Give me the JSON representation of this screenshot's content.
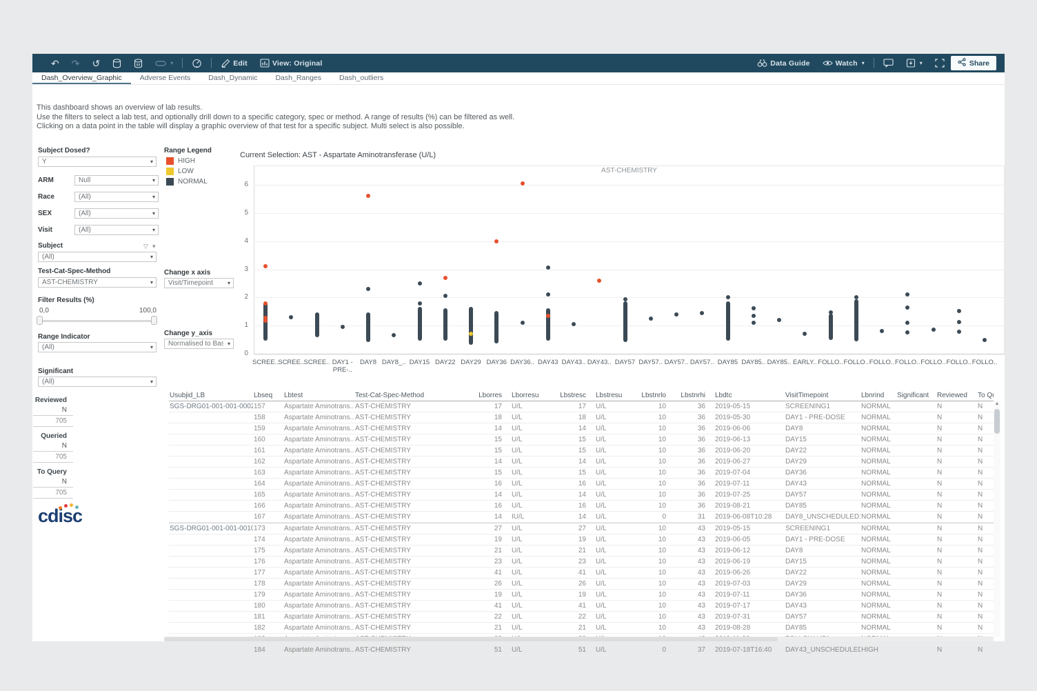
{
  "toolbar": {
    "edit": "Edit",
    "view": "View: Original",
    "data_guide": "Data Guide",
    "watch": "Watch",
    "share": "Share"
  },
  "tabs": [
    "Dash_Overview_Graphic",
    "Adverse Events",
    "Dash_Dynamic",
    "Dash_Ranges",
    "Dash_outliers"
  ],
  "active_tab": "Dash_Overview_Graphic",
  "description": {
    "line1": "This dashboard shows an overview of lab results.",
    "line2": "Use the filters to select a lab test, and optionally drill down to a specific category, spec or method. A range of results (%) can be filtered as well.",
    "line3": "Clicking on a data point in the table will display a graphic overview of that test for a specific subject. Multi select is also possible."
  },
  "filters": {
    "subject_dosed": {
      "label": "Subject Dosed?",
      "value": "Y"
    },
    "arm": {
      "label": "ARM",
      "value": "Null"
    },
    "race": {
      "label": "Race",
      "value": "(All)"
    },
    "sex": {
      "label": "SEX",
      "value": "(All)"
    },
    "visit": {
      "label": "Visit",
      "value": "(All)"
    },
    "subject": {
      "label": "Subject",
      "value": "(All)"
    },
    "test_cat": {
      "label": "Test-Cat-Spec-Method",
      "value": "AST-CHEMISTRY"
    },
    "filter_results": {
      "label": "Filter Results (%)",
      "min": "0,0",
      "max": "100,0"
    },
    "range_indicator": {
      "label": "Range Indicator",
      "value": "(All)"
    },
    "significant": {
      "label": "Significant",
      "value": "(All)"
    }
  },
  "axis_controls": {
    "x": {
      "label": "Change x axis",
      "value": "Visit/Timepoint"
    },
    "y": {
      "label": "Change y_axis",
      "value": "Normalised to Basel..."
    }
  },
  "legend": {
    "title": "Range Legend",
    "items": [
      {
        "label": "HIGH",
        "color": "#e8502c"
      },
      {
        "label": "LOW",
        "color": "#eec82d"
      },
      {
        "label": "NORMAL",
        "color": "#3b4a55"
      }
    ]
  },
  "counts": [
    {
      "label": "Reviewed",
      "header": "N",
      "value": "705"
    },
    {
      "label": "Queried",
      "header": "N",
      "value": "705"
    },
    {
      "label": "To Query",
      "header": "N",
      "value": "705"
    }
  ],
  "logo_text": "cdisc",
  "chart_title": "Current Selection: AST - Aspartate Aminotransferase (U/L)",
  "chart_data": {
    "type": "scatter",
    "pane_title": "AST-CHEMISTRY",
    "ylim": [
      0,
      6.5
    ],
    "yticks": [
      0,
      1,
      2,
      3,
      4,
      5,
      6
    ],
    "grid": true,
    "point_colors": {
      "high": "#e8502c",
      "low": "#eec82d",
      "normal": "#3b4a55"
    },
    "columns": [
      {
        "label": "SCREE..",
        "cluster": [
          0.55,
          1.75
        ],
        "points": [
          {
            "y": 3.1,
            "c": "high"
          },
          {
            "y": 1.8,
            "c": "high"
          },
          {
            "y": 1.28,
            "c": "high"
          },
          {
            "y": 1.18,
            "c": "high"
          }
        ]
      },
      {
        "label": "SCREE..",
        "cluster": null,
        "points": [
          {
            "y": 1.3
          }
        ]
      },
      {
        "label": "SCREE..",
        "cluster": [
          0.65,
          1.4
        ],
        "points": []
      },
      {
        "label": "DAY1 - PRE-..",
        "cluster": null,
        "points": [
          {
            "y": 0.95
          }
        ]
      },
      {
        "label": "DAY8",
        "cluster": [
          0.5,
          1.4
        ],
        "points": [
          {
            "y": 5.6,
            "c": "high"
          },
          {
            "y": 2.3
          }
        ]
      },
      {
        "label": "DAY8_..",
        "cluster": null,
        "points": [
          {
            "y": 0.65
          }
        ]
      },
      {
        "label": "DAY15",
        "cluster": [
          0.55,
          1.6
        ],
        "points": [
          {
            "y": 2.5
          },
          {
            "y": 1.8
          }
        ]
      },
      {
        "label": "DAY22",
        "cluster": [
          0.55,
          1.55
        ],
        "points": [
          {
            "y": 2.7,
            "c": "high"
          },
          {
            "y": 2.05
          }
        ]
      },
      {
        "label": "DAY29",
        "cluster": [
          0.4,
          1.6
        ],
        "points": [
          {
            "y": 0.7,
            "c": "low"
          }
        ]
      },
      {
        "label": "DAY36",
        "cluster": [
          0.45,
          1.45
        ],
        "points": [
          {
            "y": 4.0,
            "c": "high"
          }
        ]
      },
      {
        "label": "DAY36..",
        "cluster": null,
        "points": [
          {
            "y": 6.05,
            "c": "high"
          },
          {
            "y": 1.1
          }
        ]
      },
      {
        "label": "DAY43",
        "cluster": [
          0.55,
          1.55
        ],
        "points": [
          {
            "y": 3.05
          },
          {
            "y": 2.1
          },
          {
            "y": 1.35,
            "c": "high"
          }
        ]
      },
      {
        "label": "DAY43..",
        "cluster": null,
        "points": [
          {
            "y": 1.05
          }
        ]
      },
      {
        "label": "DAY43..",
        "cluster": null,
        "points": [
          {
            "y": 2.6,
            "c": "high"
          }
        ]
      },
      {
        "label": "DAY57",
        "cluster": [
          0.5,
          1.8
        ],
        "points": [
          {
            "y": 1.93
          }
        ]
      },
      {
        "label": "DAY57..",
        "cluster": null,
        "points": [
          {
            "y": 1.25
          }
        ]
      },
      {
        "label": "DAY57..",
        "cluster": null,
        "points": [
          {
            "y": 1.4
          }
        ]
      },
      {
        "label": "DAY57..",
        "cluster": null,
        "points": [
          {
            "y": 1.45
          }
        ]
      },
      {
        "label": "DAY85",
        "cluster": [
          0.55,
          1.8
        ],
        "points": [
          {
            "y": 2.0
          }
        ]
      },
      {
        "label": "DAY85..",
        "cluster": null,
        "points": [
          {
            "y": 1.62
          },
          {
            "y": 1.35
          },
          {
            "y": 1.1
          }
        ]
      },
      {
        "label": "DAY85..",
        "cluster": null,
        "points": [
          {
            "y": 1.2
          }
        ]
      },
      {
        "label": "EARLY..",
        "cluster": null,
        "points": [
          {
            "y": 0.7
          }
        ]
      },
      {
        "label": "FOLLO..",
        "cluster": [
          0.56,
          1.35
        ],
        "points": [
          {
            "y": 1.47
          }
        ]
      },
      {
        "label": "FOLLO..",
        "cluster": [
          0.51,
          1.86
        ],
        "points": [
          {
            "y": 2.0
          }
        ]
      },
      {
        "label": "FOLLO..",
        "cluster": null,
        "points": [
          {
            "y": 0.8
          }
        ]
      },
      {
        "label": "FOLLO..",
        "cluster": null,
        "points": [
          {
            "y": 2.1
          },
          {
            "y": 1.63
          },
          {
            "y": 1.1
          },
          {
            "y": 0.77
          }
        ]
      },
      {
        "label": "FOLLO..",
        "cluster": null,
        "points": [
          {
            "y": 0.85
          }
        ]
      },
      {
        "label": "FOLLO..",
        "cluster": null,
        "points": [
          {
            "y": 1.52
          },
          {
            "y": 1.12
          },
          {
            "y": 0.78
          }
        ]
      },
      {
        "label": "FOLLO..",
        "cluster": null,
        "points": [
          {
            "y": 0.5
          }
        ]
      }
    ]
  },
  "table": {
    "headers": [
      "Usubjid_LB",
      "Lbseq",
      "Lbtest",
      "Test-Cat-Spec-Method",
      "Lborres",
      "Lborresu",
      "Lbstresc",
      "Lbstresu",
      "Lbstnrlo",
      "Lbstnrhi",
      "Lbdtc",
      "VisitTimepoint",
      "Lbnrind",
      "Significant",
      "Reviewed",
      "To Query"
    ],
    "groups": [
      {
        "subject": "SGS-DRG01-001-001-0002",
        "rows": [
          [
            "157",
            "Aspartate Aminotrans..",
            "AST-CHEMISTRY",
            "17",
            "U/L",
            "17",
            "U/L",
            "10",
            "36",
            "2019-05-15",
            "SCREENING1",
            "NORMAL",
            "",
            "N",
            "N"
          ],
          [
            "158",
            "Aspartate Aminotrans..",
            "AST-CHEMISTRY",
            "18",
            "U/L",
            "18",
            "U/L",
            "10",
            "36",
            "2019-05-30",
            "DAY1 - PRE-DOSE",
            "NORMAL",
            "",
            "N",
            "N"
          ],
          [
            "159",
            "Aspartate Aminotrans..",
            "AST-CHEMISTRY",
            "14",
            "U/L",
            "14",
            "U/L",
            "10",
            "36",
            "2019-06-06",
            "DAY8",
            "NORMAL",
            "",
            "N",
            "N"
          ],
          [
            "160",
            "Aspartate Aminotrans..",
            "AST-CHEMISTRY",
            "15",
            "U/L",
            "15",
            "U/L",
            "10",
            "36",
            "2019-06-13",
            "DAY15",
            "NORMAL",
            "",
            "N",
            "N"
          ],
          [
            "161",
            "Aspartate Aminotrans..",
            "AST-CHEMISTRY",
            "15",
            "U/L",
            "15",
            "U/L",
            "10",
            "36",
            "2019-06-20",
            "DAY22",
            "NORMAL",
            "",
            "N",
            "N"
          ],
          [
            "162",
            "Aspartate Aminotrans..",
            "AST-CHEMISTRY",
            "14",
            "U/L",
            "14",
            "U/L",
            "10",
            "36",
            "2019-06-27",
            "DAY29",
            "NORMAL",
            "",
            "N",
            "N"
          ],
          [
            "163",
            "Aspartate Aminotrans..",
            "AST-CHEMISTRY",
            "15",
            "U/L",
            "15",
            "U/L",
            "10",
            "36",
            "2019-07-04",
            "DAY36",
            "NORMAL",
            "",
            "N",
            "N"
          ],
          [
            "164",
            "Aspartate Aminotrans..",
            "AST-CHEMISTRY",
            "16",
            "U/L",
            "16",
            "U/L",
            "10",
            "36",
            "2019-07-11",
            "DAY43",
            "NORMAL",
            "",
            "N",
            "N"
          ],
          [
            "165",
            "Aspartate Aminotrans..",
            "AST-CHEMISTRY",
            "14",
            "U/L",
            "14",
            "U/L",
            "10",
            "36",
            "2019-07-25",
            "DAY57",
            "NORMAL",
            "",
            "N",
            "N"
          ],
          [
            "166",
            "Aspartate Aminotrans..",
            "AST-CHEMISTRY",
            "16",
            "U/L",
            "16",
            "U/L",
            "10",
            "36",
            "2019-08-21",
            "DAY85",
            "NORMAL",
            "",
            "N",
            "N"
          ],
          [
            "167",
            "Aspartate Aminotrans..",
            "AST-CHEMISTRY",
            "14",
            "IU/L",
            "14",
            "U/L",
            "0",
            "31",
            "2019-06-08T10:28",
            "DAY8_UNSCHEDULED1",
            "NORMAL",
            "",
            "N",
            "N"
          ]
        ]
      },
      {
        "subject": "SGS-DRG01-001-001-0010",
        "rows": [
          [
            "173",
            "Aspartate Aminotrans..",
            "AST-CHEMISTRY",
            "27",
            "U/L",
            "27",
            "U/L",
            "10",
            "43",
            "2019-05-15",
            "SCREENING1",
            "NORMAL",
            "",
            "N",
            "N"
          ],
          [
            "174",
            "Aspartate Aminotrans..",
            "AST-CHEMISTRY",
            "19",
            "U/L",
            "19",
            "U/L",
            "10",
            "43",
            "2019-06-05",
            "DAY1 - PRE-DOSE",
            "NORMAL",
            "",
            "N",
            "N"
          ],
          [
            "175",
            "Aspartate Aminotrans..",
            "AST-CHEMISTRY",
            "21",
            "U/L",
            "21",
            "U/L",
            "10",
            "43",
            "2019-06-12",
            "DAY8",
            "NORMAL",
            "",
            "N",
            "N"
          ],
          [
            "176",
            "Aspartate Aminotrans..",
            "AST-CHEMISTRY",
            "23",
            "U/L",
            "23",
            "U/L",
            "10",
            "43",
            "2019-06-19",
            "DAY15",
            "NORMAL",
            "",
            "N",
            "N"
          ],
          [
            "177",
            "Aspartate Aminotrans..",
            "AST-CHEMISTRY",
            "41",
            "U/L",
            "41",
            "U/L",
            "10",
            "43",
            "2019-06-26",
            "DAY22",
            "NORMAL",
            "",
            "N",
            "N"
          ],
          [
            "178",
            "Aspartate Aminotrans..",
            "AST-CHEMISTRY",
            "26",
            "U/L",
            "26",
            "U/L",
            "10",
            "43",
            "2019-07-03",
            "DAY29",
            "NORMAL",
            "",
            "N",
            "N"
          ],
          [
            "179",
            "Aspartate Aminotrans..",
            "AST-CHEMISTRY",
            "19",
            "U/L",
            "19",
            "U/L",
            "10",
            "43",
            "2019-07-11",
            "DAY36",
            "NORMAL",
            "",
            "N",
            "N"
          ],
          [
            "180",
            "Aspartate Aminotrans..",
            "AST-CHEMISTRY",
            "41",
            "U/L",
            "41",
            "U/L",
            "10",
            "43",
            "2019-07-17",
            "DAY43",
            "NORMAL",
            "",
            "N",
            "N"
          ],
          [
            "181",
            "Aspartate Aminotrans..",
            "AST-CHEMISTRY",
            "22",
            "U/L",
            "22",
            "U/L",
            "10",
            "43",
            "2019-07-31",
            "DAY57",
            "NORMAL",
            "",
            "N",
            "N"
          ],
          [
            "182",
            "Aspartate Aminotrans..",
            "AST-CHEMISTRY",
            "21",
            "U/L",
            "21",
            "U/L",
            "10",
            "43",
            "2019-08-28",
            "DAY85",
            "NORMAL",
            "",
            "N",
            "N"
          ],
          [
            "183",
            "Aspartate Aminotrans..",
            "AST-CHEMISTRY",
            "32",
            "U/L",
            "32",
            "U/L",
            "10",
            "43",
            "2019-11-20",
            "FOLLOW-UP1",
            "NORMAL",
            "",
            "N",
            "N"
          ],
          [
            "184",
            "Aspartate Aminotrans..",
            "AST-CHEMISTRY",
            "51",
            "U/L",
            "51",
            "U/L",
            "0",
            "37",
            "2019-07-18T16:40",
            "DAY43_UNSCHEDULED2",
            "HIGH",
            "",
            "N",
            "N"
          ]
        ]
      }
    ]
  }
}
